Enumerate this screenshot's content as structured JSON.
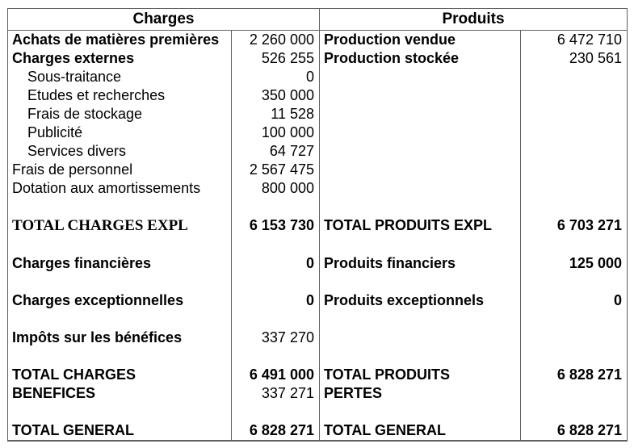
{
  "colors": {
    "border": "#5f5f5f",
    "text": "#000000",
    "background": "#ffffff"
  },
  "table": {
    "headers": {
      "charges": "Charges",
      "produits": "Produits"
    },
    "rows": [
      {
        "charges": {
          "label": "Achats de matières premières",
          "value": "2 260 000"
        },
        "produits": {
          "label": "Production vendue",
          "value": "6 472 710"
        }
      },
      {
        "charges": {
          "label": "Charges externes",
          "value": "526 255"
        },
        "produits": {
          "label": "Production stockée",
          "value": "230 561"
        }
      },
      {
        "charges": {
          "label": "Sous-traitance",
          "value": "0"
        },
        "produits": {
          "label": "",
          "value": ""
        }
      },
      {
        "charges": {
          "label": "Etudes et recherches",
          "value": "350 000"
        },
        "produits": {
          "label": "",
          "value": ""
        }
      },
      {
        "charges": {
          "label": "Frais de stockage",
          "value": "11 528"
        },
        "produits": {
          "label": "",
          "value": ""
        }
      },
      {
        "charges": {
          "label": "Publicité",
          "value": "100 000"
        },
        "produits": {
          "label": "",
          "value": ""
        }
      },
      {
        "charges": {
          "label": "Services divers",
          "value": "64 727"
        },
        "produits": {
          "label": "",
          "value": ""
        }
      },
      {
        "charges": {
          "label": "Frais de personnel",
          "value": "2 567 475"
        },
        "produits": {
          "label": "",
          "value": ""
        }
      },
      {
        "charges": {
          "label": "Dotation aux amortissements",
          "value": "800 000"
        },
        "produits": {
          "label": "",
          "value": ""
        }
      },
      {
        "charges": {
          "label": "",
          "value": ""
        },
        "produits": {
          "label": "",
          "value": ""
        }
      },
      {
        "charges": {
          "label": "TOTAL CHARGES EXPL",
          "value": "6 153 730"
        },
        "produits": {
          "label": "TOTAL PRODUITS EXPL",
          "value": "6 703 271"
        }
      },
      {
        "charges": {
          "label": "",
          "value": ""
        },
        "produits": {
          "label": "",
          "value": ""
        }
      },
      {
        "charges": {
          "label": "Charges financières",
          "value": "0"
        },
        "produits": {
          "label": "Produits financiers",
          "value": "125 000"
        }
      },
      {
        "charges": {
          "label": "",
          "value": ""
        },
        "produits": {
          "label": "",
          "value": ""
        }
      },
      {
        "charges": {
          "label": "Charges exceptionnelles",
          "value": "0"
        },
        "produits": {
          "label": "Produits exceptionnels",
          "value": "0"
        }
      },
      {
        "charges": {
          "label": "",
          "value": ""
        },
        "produits": {
          "label": "",
          "value": ""
        }
      },
      {
        "charges": {
          "label": "Impôts sur les bénéfices",
          "value": "337 270"
        },
        "produits": {
          "label": "",
          "value": ""
        }
      },
      {
        "charges": {
          "label": "",
          "value": ""
        },
        "produits": {
          "label": "",
          "value": ""
        }
      },
      {
        "charges": {
          "label": "TOTAL CHARGES",
          "value": "6 491 000"
        },
        "produits": {
          "label": "TOTAL PRODUITS",
          "value": "6 828 271"
        }
      },
      {
        "charges": {
          "label": "BENEFICES",
          "value": "337 271"
        },
        "produits": {
          "label": "PERTES",
          "value": ""
        }
      },
      {
        "charges": {
          "label": "",
          "value": ""
        },
        "produits": {
          "label": "",
          "value": ""
        }
      },
      {
        "charges": {
          "label": "TOTAL GENERAL",
          "value": "6 828 271"
        },
        "produits": {
          "label": "TOTAL GENERAL",
          "value": "6 828 271"
        }
      }
    ]
  }
}
